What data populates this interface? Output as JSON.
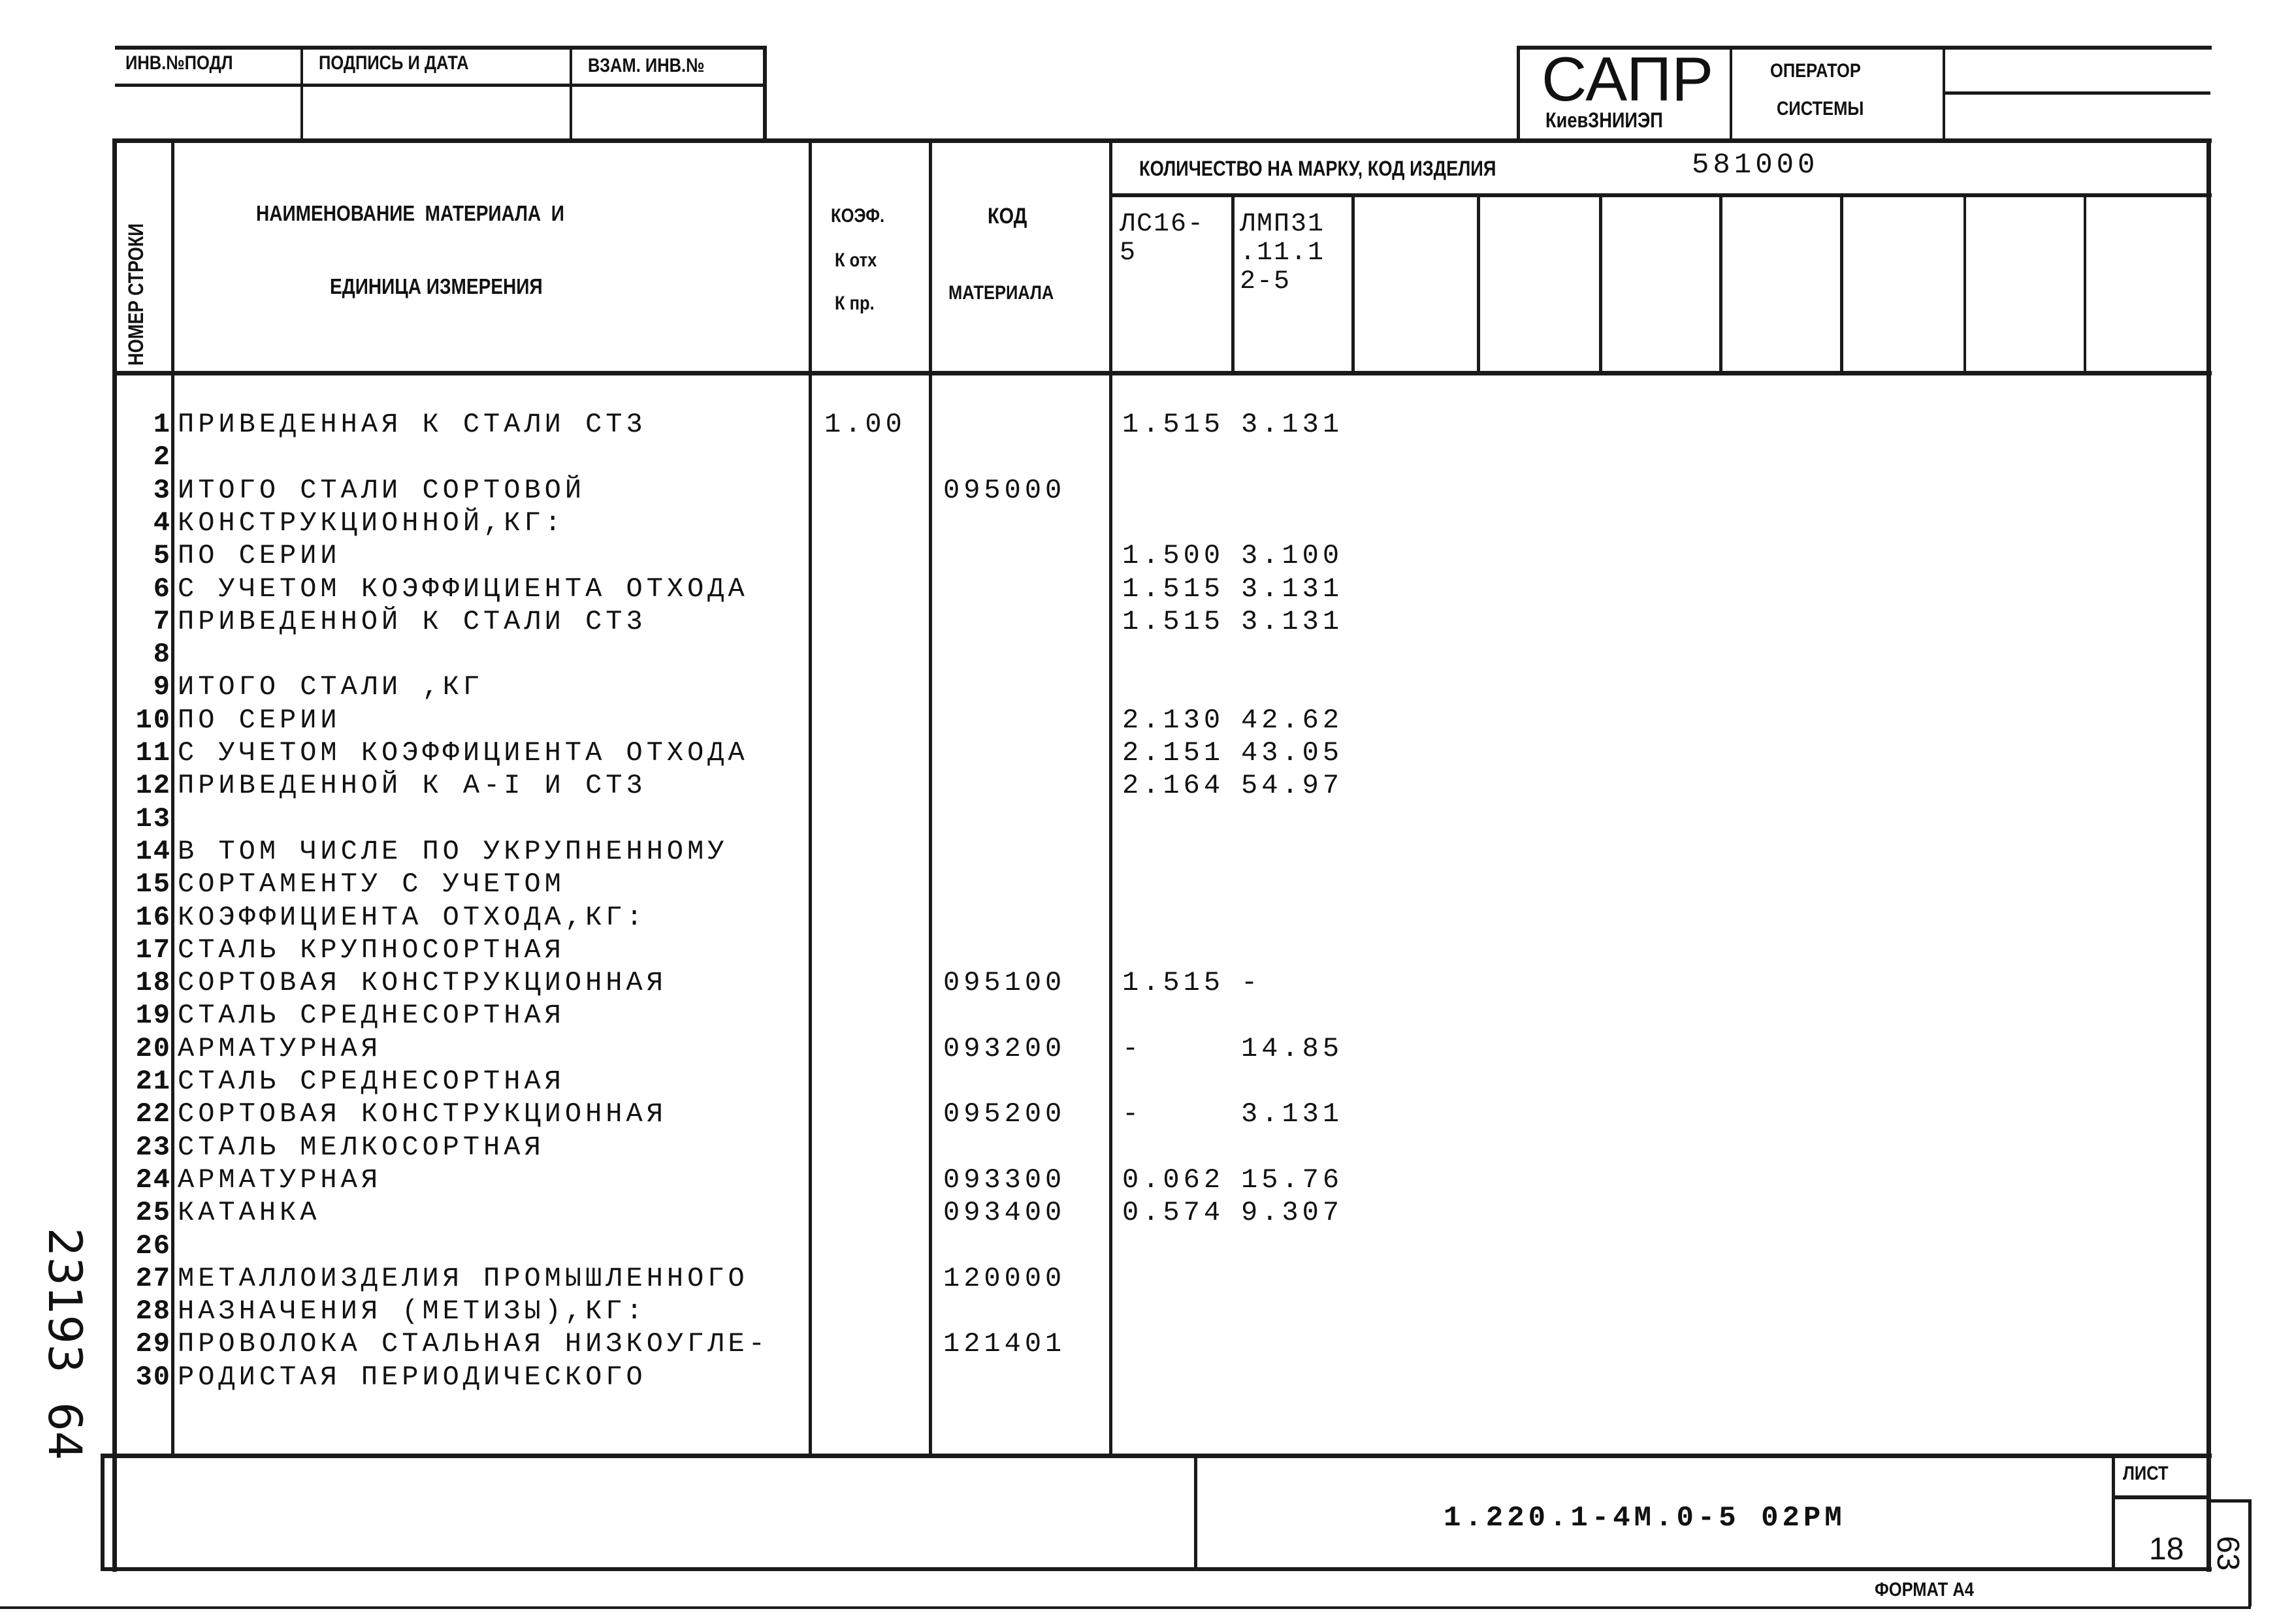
{
  "stamp_top": {
    "inv_podl": "ИНВ.№ПОДЛ",
    "podpis_data": "ПОДПИСЬ И ДАТА",
    "vzam_inv": "ВЗАМ. ИНВ.№"
  },
  "sapr_box": {
    "logo": "САПР",
    "org": "КиевЗНИИЭП",
    "operator_line1": "ОПЕРАТОР",
    "operator_line2": "СИСТЕМЫ"
  },
  "header": {
    "row_number": "НОМЕР СТРОКИ",
    "name_line1": "НАИМЕНОВАНИЕ  МАТЕРИАЛА  И",
    "name_line2": "ЕДИНИЦА ИЗМЕРЕНИЯ",
    "koef_line1": "КОЭФ.",
    "koef_line2": "К отх",
    "koef_line3": "К пр.",
    "code_line1": "КОД",
    "code_line2": "МАТЕРИАЛА",
    "quantity_label": "КОЛИЧЕСТВО НА МАРКУ, КОД ИЗДЕЛИЯ",
    "product_code": "581000",
    "marks": [
      "ЛС16-\n5",
      "ЛМП31\n.11.1\n2-5",
      "",
      "",
      "",
      "",
      "",
      "",
      ""
    ]
  },
  "rows": [
    {
      "n": "1",
      "text": "  ПРИВЕДЕННАЯ К СТАЛИ СТ3",
      "koef": "1.00",
      "code": "",
      "q1": "1.515",
      "q2": "3.131"
    },
    {
      "n": "2",
      "text": "",
      "koef": "",
      "code": "",
      "q1": "",
      "q2": ""
    },
    {
      "n": "3",
      "text": "ИТОГО СТАЛИ  СОРТОВОЙ",
      "koef": "",
      "code": "095000",
      "q1": "",
      "q2": ""
    },
    {
      "n": "4",
      "text": " КОНСТРУКЦИОННОЙ,КГ:",
      "koef": "",
      "code": "",
      "q1": "",
      "q2": ""
    },
    {
      "n": "5",
      "text": "  ПО СЕРИИ",
      "koef": "",
      "code": "",
      "q1": "1.500",
      "q2": "3.100"
    },
    {
      "n": "6",
      "text": "  С УЧЕТОМ КОЭФФИЦИЕНТА ОТХОДА",
      "koef": "",
      "code": "",
      "q1": "1.515",
      "q2": "3.131"
    },
    {
      "n": "7",
      "text": "  ПРИВЕДЕННОЙ К СТАЛИ СТ3",
      "koef": "",
      "code": "",
      "q1": "1.515",
      "q2": "3.131"
    },
    {
      "n": "8",
      "text": "",
      "koef": "",
      "code": "",
      "q1": "",
      "q2": ""
    },
    {
      "n": "9",
      "text": "ИТОГО СТАЛИ   ,КГ",
      "koef": "",
      "code": "",
      "q1": "",
      "q2": ""
    },
    {
      "n": "10",
      "text": "  ПО СЕРИИ",
      "koef": "",
      "code": "",
      "q1": "2.130",
      "q2": "42.62"
    },
    {
      "n": "11",
      "text": "  С УЧЕТОМ КОЭФФИЦИЕНТА ОТХОДА",
      "koef": "",
      "code": "",
      "q1": "2.151",
      "q2": "43.05"
    },
    {
      "n": "12",
      "text": "  ПРИВЕДЕННОЙ К А-I И СТ3",
      "koef": "",
      "code": "",
      "q1": "2.164",
      "q2": "54.97"
    },
    {
      "n": "13",
      "text": "",
      "koef": "",
      "code": "",
      "q1": "",
      "q2": ""
    },
    {
      "n": "14",
      "text": "В ТОМ ЧИСЛЕ ПО УКРУПНЕННОМУ",
      "koef": "",
      "code": "",
      "q1": "",
      "q2": ""
    },
    {
      "n": "15",
      "text": "СОРТАМЕНТУ С УЧЕТОМ",
      "koef": "",
      "code": "",
      "q1": "",
      "q2": ""
    },
    {
      "n": "16",
      "text": "КОЭФФИЦИЕНТА ОТХОДА,КГ:",
      "koef": "",
      "code": "",
      "q1": "",
      "q2": ""
    },
    {
      "n": "17",
      "text": " СТАЛЬ КРУПНОСОРТНАЯ",
      "koef": "",
      "code": "",
      "q1": "",
      "q2": ""
    },
    {
      "n": "18",
      "text": "  СОРТОВАЯ КОНСТРУКЦИОННАЯ",
      "koef": "",
      "code": "095100",
      "q1": "1.515",
      "q2": "  -"
    },
    {
      "n": "19",
      "text": " СТАЛЬ СРЕДНЕСОРТНАЯ",
      "koef": "",
      "code": "",
      "q1": "",
      "q2": ""
    },
    {
      "n": "20",
      "text": "  АРМАТУРНАЯ",
      "koef": "",
      "code": "093200",
      "q1": "    -",
      "q2": "14.85"
    },
    {
      "n": "21",
      "text": " СТАЛЬ СРЕДНЕСОРТНАЯ",
      "koef": "",
      "code": "",
      "q1": "",
      "q2": ""
    },
    {
      "n": "22",
      "text": "  СОРТОВАЯ КОНСТРУКЦИОННАЯ",
      "koef": "",
      "code": "095200",
      "q1": "    -",
      "q2": "3.131"
    },
    {
      "n": "23",
      "text": " СТАЛЬ МЕЛКОСОРТНАЯ",
      "koef": "",
      "code": "",
      "q1": "",
      "q2": ""
    },
    {
      "n": "24",
      "text": "  АРМАТУРНАЯ",
      "koef": "",
      "code": "093300",
      "q1": "0.062",
      "q2": "15.76"
    },
    {
      "n": "25",
      "text": " КАТАНКА",
      "koef": "",
      "code": "093400",
      "q1": "0.574",
      "q2": "9.307"
    },
    {
      "n": "26",
      "text": "",
      "koef": "",
      "code": "",
      "q1": "",
      "q2": ""
    },
    {
      "n": "27",
      "text": "МЕТАЛЛОИЗДЕЛИЯ ПРОМЫШЛЕННОГО",
      "koef": "",
      "code": "120000",
      "q1": "",
      "q2": ""
    },
    {
      "n": "28",
      "text": "НАЗНАЧЕНИЯ (МЕТИЗЫ),КГ:",
      "koef": "",
      "code": "",
      "q1": "",
      "q2": ""
    },
    {
      "n": "29",
      "text": " ПРОВОЛОКА СТАЛЬНАЯ НИЗКОУГЛЕ-",
      "koef": "",
      "code": "121401",
      "q1": "",
      "q2": ""
    },
    {
      "n": "30",
      "text": " РОДИСТАЯ ПЕРИОДИЧЕСКОГО",
      "koef": "",
      "code": "",
      "q1": "",
      "q2": ""
    }
  ],
  "footer": {
    "designation": "1.220.1-4М.0-5 02РМ",
    "sheet_label": "ЛИСТ",
    "sheet_number": "18",
    "format": "ФОРМАТ А4",
    "page_number": "63"
  },
  "margin_handwritten": "23193  64"
}
